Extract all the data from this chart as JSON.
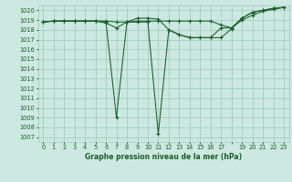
{
  "title": "Graphe pression niveau de la mer (hPa)",
  "bg_color": "#cce8e0",
  "grid_color": "#99ccbb",
  "line_color": "#1a5c2a",
  "xlim": [
    -0.5,
    23.5
  ],
  "ylim": [
    1006.5,
    1020.5
  ],
  "yticks": [
    1007,
    1008,
    1009,
    1010,
    1011,
    1012,
    1013,
    1014,
    1015,
    1016,
    1017,
    1018,
    1019,
    1020
  ],
  "xtick_labels": [
    "0",
    "1",
    "2",
    "3",
    "4",
    "5",
    "6",
    "7",
    "8",
    "9",
    "10",
    "11",
    "12",
    "13",
    "14",
    "15",
    "16",
    "17",
    "",
    "19",
    "20",
    "21",
    "22",
    "23"
  ],
  "series": [
    [
      1018.8,
      1018.9,
      1018.9,
      1018.9,
      1018.9,
      1018.9,
      1018.9,
      1018.8,
      1018.8,
      1018.9,
      1018.9,
      1018.9,
      1018.9,
      1018.9,
      1018.9,
      1018.9,
      1018.9,
      1018.5,
      1018.2,
      1019.0,
      1019.5,
      1019.9,
      1020.1,
      1020.3
    ],
    [
      1018.8,
      1018.9,
      1018.9,
      1018.9,
      1018.9,
      1018.9,
      1018.7,
      1018.2,
      1018.8,
      1019.2,
      1019.2,
      1019.1,
      1018.0,
      1017.5,
      1017.2,
      1017.2,
      1017.2,
      1017.2,
      1018.1,
      1019.2,
      1019.8,
      1020.0,
      1020.2,
      1020.3
    ],
    [
      1018.8,
      1018.9,
      1018.9,
      1018.9,
      1018.9,
      1018.9,
      1018.8,
      1009.0,
      1018.8,
      1018.8,
      1018.8,
      1007.3,
      1018.0,
      1017.5,
      1017.2,
      1017.2,
      1017.2,
      1018.2,
      1018.2,
      1019.2,
      1019.8,
      1020.0,
      1020.2,
      1020.3
    ]
  ],
  "title_fontsize": 5.5,
  "tick_fontsize": 4.8,
  "marker_size": 2.5,
  "linewidth": 0.75
}
